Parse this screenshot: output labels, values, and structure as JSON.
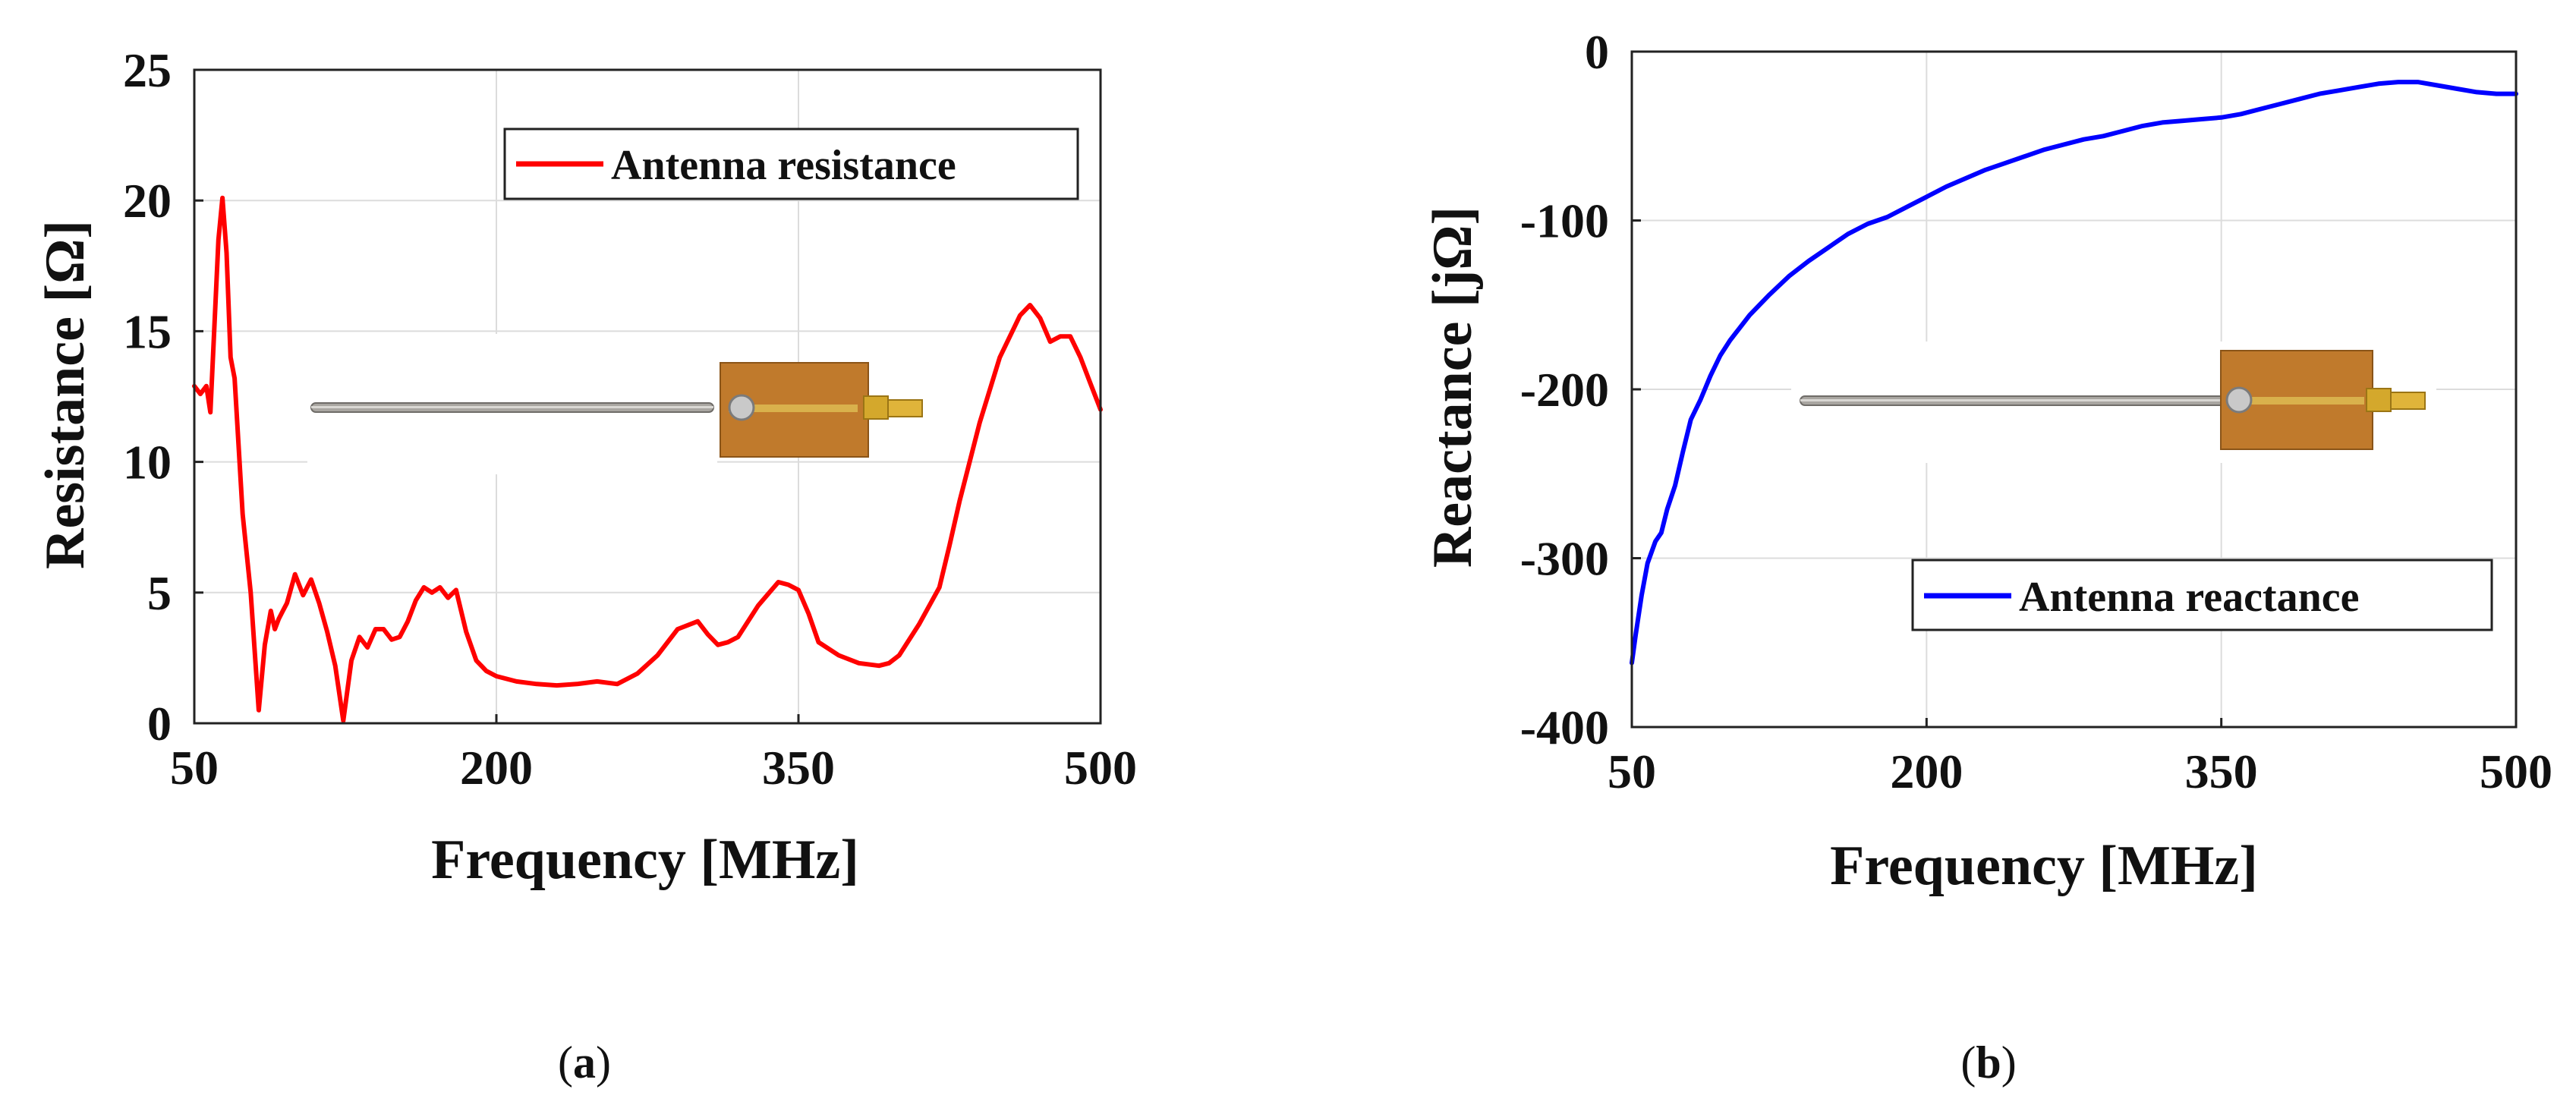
{
  "figure": {
    "panels": [
      "a",
      "b"
    ]
  },
  "chart_data": [
    {
      "type": "line",
      "panel_label": "a",
      "xlabel": "Frequency [MHz]",
      "ylabel": "Resistance [Ω]",
      "xlim": [
        50,
        500
      ],
      "ylim": [
        0,
        25
      ],
      "xticks": [
        50,
        200,
        350,
        500
      ],
      "yticks": [
        0,
        5,
        10,
        15,
        20,
        25
      ],
      "grid": true,
      "legend_position": "top-right",
      "inset": "photo of telescopic antenna on PCB with SMA connector",
      "series": [
        {
          "name": "Antenna resistance",
          "color": "#ff0000",
          "x": [
            50,
            53,
            56,
            58,
            62,
            64,
            66,
            68,
            70,
            74,
            78,
            82,
            85,
            88,
            90,
            92,
            94,
            96,
            100,
            104,
            108,
            112,
            116,
            120,
            124,
            128,
            132,
            136,
            140,
            144,
            148,
            152,
            156,
            160,
            164,
            168,
            172,
            176,
            180,
            185,
            190,
            195,
            200,
            210,
            220,
            230,
            240,
            250,
            260,
            270,
            280,
            290,
            300,
            305,
            310,
            315,
            320,
            330,
            340,
            345,
            350,
            355,
            360,
            370,
            380,
            390,
            395,
            400,
            410,
            420,
            425,
            430,
            440,
            450,
            460,
            465,
            470,
            475,
            480,
            485,
            490,
            495,
            500
          ],
          "y": [
            12.9,
            12.6,
            12.9,
            11.9,
            18.5,
            20.1,
            18.0,
            14.0,
            13.2,
            8.0,
            5.0,
            0.5,
            3.0,
            4.3,
            3.6,
            4.0,
            4.3,
            4.6,
            5.7,
            4.9,
            5.5,
            4.6,
            3.5,
            2.2,
            0.1,
            2.4,
            3.3,
            2.9,
            3.6,
            3.6,
            3.2,
            3.3,
            3.9,
            4.7,
            5.2,
            5.0,
            5.2,
            4.8,
            5.1,
            3.5,
            2.4,
            2.0,
            1.8,
            1.6,
            1.5,
            1.45,
            1.5,
            1.6,
            1.5,
            1.9,
            2.6,
            3.6,
            3.9,
            3.4,
            3.0,
            3.1,
            3.3,
            4.5,
            5.4,
            5.3,
            5.1,
            4.2,
            3.1,
            2.6,
            2.3,
            2.2,
            2.3,
            2.6,
            3.8,
            5.2,
            6.8,
            8.5,
            11.5,
            14.0,
            15.6,
            16.0,
            15.5,
            14.6,
            14.8,
            14.8,
            14.0,
            13.0,
            12.0
          ]
        }
      ]
    },
    {
      "type": "line",
      "panel_label": "b",
      "xlabel": "Frequency [MHz]",
      "ylabel": "Reactance [jΩ]",
      "xlim": [
        50,
        500
      ],
      "ylim": [
        -400,
        0
      ],
      "xticks": [
        50,
        200,
        350,
        500
      ],
      "yticks": [
        0,
        -100,
        -200,
        -300,
        -400
      ],
      "grid": true,
      "legend_position": "bottom-right",
      "inset": "photo of telescopic antenna on PCB with SMA connector",
      "series": [
        {
          "name": "Antenna reactance",
          "color": "#0000ff",
          "x": [
            50,
            52,
            55,
            58,
            62,
            65,
            68,
            72,
            76,
            80,
            85,
            90,
            95,
            100,
            110,
            120,
            130,
            140,
            150,
            160,
            170,
            180,
            190,
            200,
            210,
            220,
            230,
            240,
            250,
            260,
            270,
            280,
            290,
            300,
            310,
            320,
            330,
            340,
            350,
            360,
            370,
            380,
            390,
            400,
            410,
            420,
            430,
            440,
            450,
            460,
            470,
            480,
            490,
            500
          ],
          "y": [
            -362,
            -345,
            -322,
            -303,
            -290,
            -285,
            -271,
            -257,
            -237,
            -218,
            -206,
            -192,
            -180,
            -171,
            -156,
            -144,
            -133,
            -124,
            -116,
            -108,
            -102,
            -98,
            -92,
            -86,
            -80,
            -75,
            -70,
            -66,
            -62,
            -58,
            -55,
            -52,
            -50,
            -47,
            -44,
            -42,
            -41,
            -40,
            -39,
            -37,
            -34,
            -31,
            -28,
            -25,
            -23,
            -21,
            -19,
            -18,
            -18,
            -20,
            -22,
            -24,
            -25,
            -25
          ]
        }
      ]
    }
  ]
}
